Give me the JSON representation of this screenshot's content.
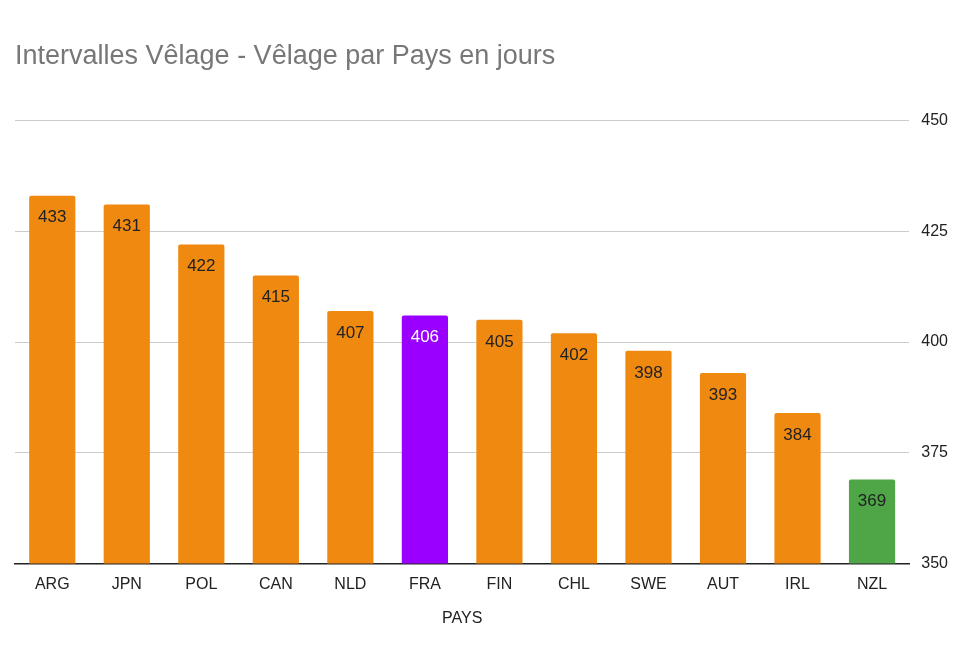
{
  "chart_data": {
    "type": "bar",
    "title": "Intervalles Vêlage - Vêlage par Pays en jours",
    "x_label": "PAYS",
    "categories": [
      "ARG",
      "JPN",
      "POL",
      "CAN",
      "NLD",
      "FRA",
      "FIN",
      "CHL",
      "SWE",
      "AUT",
      "IRL",
      "NZL"
    ],
    "values": [
      433,
      431,
      422,
      415,
      407,
      406,
      405,
      402,
      398,
      393,
      384,
      369
    ],
    "colors": [
      "#f0890f",
      "#f0890f",
      "#f0890f",
      "#f0890f",
      "#f0890f",
      "#9900ff",
      "#f0890f",
      "#f0890f",
      "#f0890f",
      "#f0890f",
      "#f0890f",
      "#4ea647"
    ],
    "ylim": [
      350,
      450
    ],
    "yticks": [
      350,
      375,
      400,
      425,
      450
    ],
    "grid": true,
    "data_labels": true
  }
}
